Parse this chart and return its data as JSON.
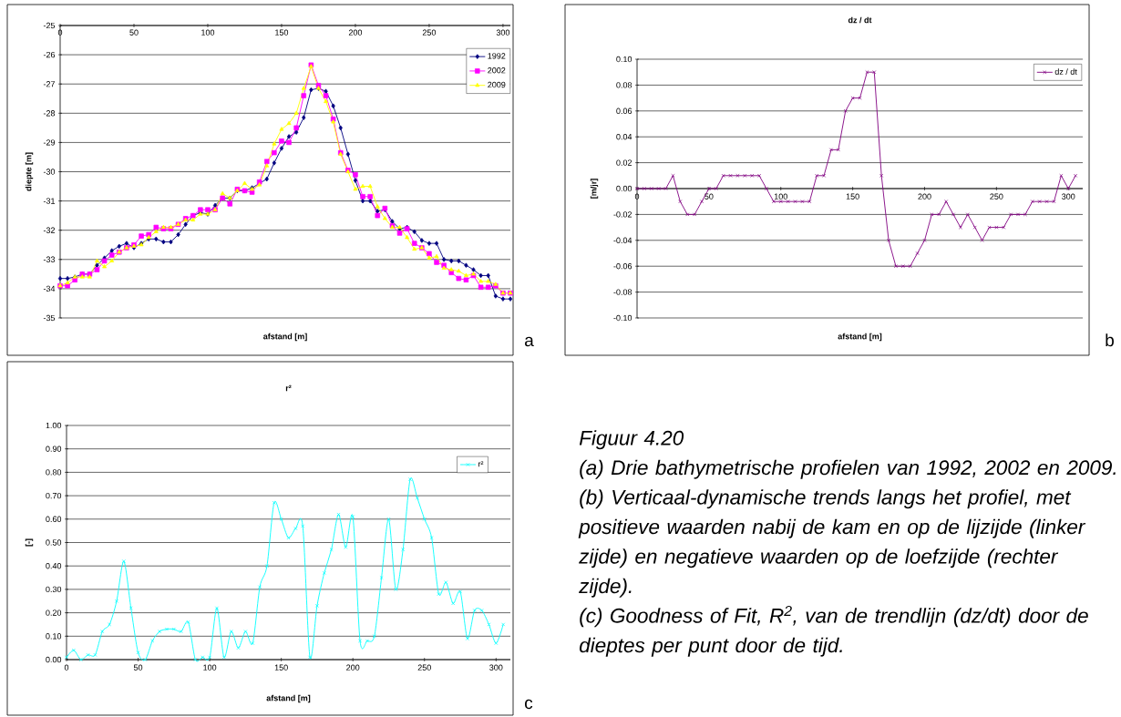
{
  "chart_data": [
    {
      "type": "line",
      "xlabel": "afstand [m]",
      "ylabel": "diepte [m]",
      "annotations": [
        "a"
      ],
      "x": [
        0,
        5,
        10,
        15,
        20,
        25,
        30,
        35,
        40,
        45,
        50,
        55,
        60,
        65,
        70,
        75,
        80,
        85,
        90,
        95,
        100,
        105,
        110,
        115,
        120,
        125,
        130,
        135,
        140,
        145,
        150,
        155,
        160,
        165,
        170,
        175,
        180,
        185,
        190,
        195,
        200,
        205,
        210,
        215,
        220,
        225,
        230,
        235,
        240,
        245,
        250,
        255,
        260,
        265,
        270,
        275,
        280,
        285,
        290,
        295,
        300,
        305
      ],
      "series": [
        {
          "name": "1992",
          "color": "#000080",
          "marker": "diamond",
          "values": [
            -33.65,
            -33.65,
            -33.6,
            -33.5,
            -33.5,
            -33.2,
            -32.95,
            -32.7,
            -32.55,
            -32.45,
            -32.6,
            -32.45,
            -32.3,
            -32.3,
            -32.4,
            -32.4,
            -32.15,
            -31.8,
            -31.5,
            -31.4,
            -31.45,
            -31.15,
            -30.9,
            -30.9,
            -30.65,
            -30.65,
            -30.55,
            -30.4,
            -30.25,
            -29.7,
            -29.2,
            -28.8,
            -28.65,
            -28.15,
            -27.2,
            -27.15,
            -27.25,
            -27.75,
            -28.5,
            -29.4,
            -30.3,
            -31.0,
            -31.0,
            -31.35,
            -31.3,
            -31.7,
            -31.95,
            -31.9,
            -32.05,
            -32.35,
            -32.45,
            -32.45,
            -33.0,
            -33.05,
            -33.05,
            -33.2,
            -33.35,
            -33.55,
            -33.55,
            -34.25,
            -34.35,
            -34.35
          ]
        },
        {
          "name": "2002",
          "color": "#ff00ff",
          "marker": "square",
          "values": [
            -33.9,
            -33.9,
            -33.7,
            -33.5,
            -33.5,
            -33.35,
            -33.05,
            -32.85,
            -32.75,
            -32.6,
            -32.5,
            -32.2,
            -32.15,
            -31.9,
            -31.95,
            -31.95,
            -31.8,
            -31.6,
            -31.5,
            -31.3,
            -31.3,
            -31.3,
            -30.9,
            -31.1,
            -30.6,
            -30.65,
            -30.7,
            -30.35,
            -29.65,
            -29.35,
            -28.95,
            -29.0,
            -28.5,
            -27.4,
            -26.35,
            -27.05,
            -27.4,
            -28.2,
            -29.35,
            -29.95,
            -30.1,
            -30.85,
            -30.85,
            -31.5,
            -31.25,
            -31.85,
            -32.1,
            -31.95,
            -32.45,
            -32.6,
            -32.8,
            -33.1,
            -33.2,
            -33.45,
            -33.65,
            -33.7,
            -33.55,
            -33.95,
            -33.95,
            -33.9,
            -34.15,
            -34.15
          ]
        },
        {
          "name": "2009",
          "color": "#ffff00",
          "marker": "triangle",
          "values": [
            -33.9,
            -33.8,
            -33.6,
            -33.6,
            -33.6,
            -33.05,
            -33.25,
            -33.05,
            -32.75,
            -32.6,
            -32.55,
            -32.5,
            -32.25,
            -32.05,
            -31.9,
            -31.9,
            -31.8,
            -31.65,
            -31.65,
            -31.45,
            -31.45,
            -31.3,
            -30.75,
            -30.9,
            -30.65,
            -30.4,
            -30.6,
            -30.45,
            -29.8,
            -29.05,
            -28.55,
            -28.35,
            -28.0,
            -27.15,
            -26.4,
            -27.15,
            -27.6,
            -28.3,
            -29.4,
            -30.0,
            -30.6,
            -30.5,
            -30.5,
            -31.2,
            -31.6,
            -31.9,
            -31.9,
            -32.25,
            -32.65,
            -32.6,
            -32.95,
            -32.9,
            -33.3,
            -33.35,
            -33.4,
            -33.55,
            -33.5,
            -33.75,
            -33.75,
            -33.85,
            -34.15,
            -34.15
          ]
        }
      ],
      "xlim": [
        0,
        305
      ],
      "ylim": [
        -35,
        -25
      ],
      "xticks": [
        0,
        50,
        100,
        150,
        200,
        250,
        300
      ],
      "yticks": [
        -25,
        -26,
        -27,
        -28,
        -29,
        -30,
        -31,
        -32,
        -33,
        -34,
        -35
      ],
      "grid": "y",
      "legend": "top right"
    },
    {
      "type": "line",
      "title": "dz / dt",
      "xlabel": "afstand [m]",
      "ylabel": "[m/jr]",
      "annotations": [
        "b"
      ],
      "x": [
        0,
        5,
        10,
        15,
        20,
        25,
        30,
        35,
        40,
        45,
        50,
        55,
        60,
        65,
        70,
        75,
        80,
        85,
        90,
        95,
        100,
        105,
        110,
        115,
        120,
        125,
        130,
        135,
        140,
        145,
        150,
        155,
        160,
        165,
        170,
        175,
        180,
        185,
        190,
        195,
        200,
        205,
        210,
        215,
        220,
        225,
        230,
        235,
        240,
        245,
        250,
        255,
        260,
        265,
        270,
        275,
        280,
        285,
        290,
        295,
        300,
        305
      ],
      "series": [
        {
          "name": "dz / dt",
          "color": "#800080",
          "marker": "cross",
          "values": [
            0,
            0,
            0,
            0,
            0,
            0.01,
            -0.01,
            -0.02,
            -0.02,
            -0.01,
            0,
            0,
            0.01,
            0.01,
            0.01,
            0.01,
            0.01,
            0.01,
            0,
            -0.01,
            -0.01,
            -0.01,
            -0.01,
            -0.01,
            -0.01,
            0.01,
            0.01,
            0.03,
            0.03,
            0.06,
            0.07,
            0.07,
            0.09,
            0.09,
            0.01,
            -0.04,
            -0.06,
            -0.06,
            -0.06,
            -0.05,
            -0.04,
            -0.02,
            -0.02,
            -0.01,
            -0.02,
            -0.03,
            -0.02,
            -0.03,
            -0.04,
            -0.03,
            -0.03,
            -0.03,
            -0.02,
            -0.02,
            -0.02,
            -0.01,
            -0.01,
            -0.01,
            -0.01,
            0.01,
            0,
            0.01
          ]
        }
      ],
      "xlim": [
        0,
        310
      ],
      "ylim": [
        -0.1,
        0.1
      ],
      "xticks": [
        0,
        50,
        100,
        150,
        200,
        250,
        300
      ],
      "yticks": [
        {
          "value": 0.1,
          "label": "0.10"
        },
        {
          "value": 0.08,
          "label": "0.08"
        },
        {
          "value": 0.06,
          "label": "0.06"
        },
        {
          "value": 0.04,
          "label": "0.04"
        },
        {
          "value": 0.02,
          "label": "0.02"
        },
        {
          "value": 0,
          "label": "0.00"
        },
        {
          "value": -0.02,
          "label": "-0.02"
        },
        {
          "value": -0.04,
          "label": "-0.04"
        },
        {
          "value": -0.06,
          "label": "-0.06"
        },
        {
          "value": -0.08,
          "label": "-0.08"
        },
        {
          "value": -0.1,
          "label": "-0.10"
        }
      ],
      "grid": "y",
      "legend": "top right"
    },
    {
      "type": "line",
      "title": "r²",
      "xlabel": "afstand [m]",
      "ylabel": "[-]",
      "annotations": [
        "c"
      ],
      "x": [
        0,
        5,
        10,
        15,
        20,
        25,
        30,
        35,
        40,
        45,
        50,
        55,
        60,
        65,
        70,
        75,
        80,
        85,
        90,
        95,
        100,
        105,
        110,
        115,
        120,
        125,
        130,
        135,
        140,
        145,
        150,
        155,
        160,
        165,
        170,
        175,
        180,
        185,
        190,
        195,
        200,
        205,
        210,
        215,
        220,
        225,
        230,
        235,
        240,
        245,
        250,
        255,
        260,
        265,
        270,
        275,
        280,
        285,
        290,
        295,
        300,
        305
      ],
      "series": [
        {
          "name": "r²",
          "color": "#00ffff",
          "marker": "cross",
          "values": [
            0.01,
            0.04,
            0,
            0.02,
            0.02,
            0.12,
            0.15,
            0.25,
            0.42,
            0.22,
            0.03,
            0,
            0.08,
            0.12,
            0.13,
            0.13,
            0.12,
            0.16,
            0,
            0.01,
            0.01,
            0.22,
            0.01,
            0.12,
            0.05,
            0.12,
            0.07,
            0.31,
            0.4,
            0.67,
            0.6,
            0.52,
            0.56,
            0.57,
            0.01,
            0.23,
            0.37,
            0.47,
            0.62,
            0.48,
            0.61,
            0.08,
            0.08,
            0.1,
            0.35,
            0.6,
            0.3,
            0.47,
            0.77,
            0.69,
            0.6,
            0.52,
            0.28,
            0.33,
            0.24,
            0.29,
            0.09,
            0.21,
            0.21,
            0.15,
            0.07,
            0.15
          ]
        }
      ],
      "xlim": [
        0,
        310
      ],
      "ylim": [
        0,
        1
      ],
      "xticks": [
        0,
        50,
        100,
        150,
        200,
        250,
        300
      ],
      "yticks": [
        {
          "value": 1,
          "label": "1.00"
        },
        {
          "value": 0.9,
          "label": "0.90"
        },
        {
          "value": 0.8,
          "label": "0.80"
        },
        {
          "value": 0.7,
          "label": "0.70"
        },
        {
          "value": 0.6,
          "label": "0.60"
        },
        {
          "value": 0.5,
          "label": "0.50"
        },
        {
          "value": 0.4,
          "label": "0.40"
        },
        {
          "value": 0.3,
          "label": "0.30"
        },
        {
          "value": 0.2,
          "label": "0.20"
        },
        {
          "value": 0.1,
          "label": "0.10"
        },
        {
          "value": 0,
          "label": "0.00"
        }
      ],
      "grid": "y",
      "legend": "top right"
    },
    {
      "type": "other",
      "title": "Figuur 4.20",
      "annotations": [
        "(a) Drie bathymetrische profielen van 1992, 2002 en 2009.",
        "(b) Verticaal-dynamische trends langs het profiel, met positieve waarden nabij de kam en op de lijzijde (linker zijde) en negatieve waarden op de loefzijde (rechter zijde).",
        "(c) Goodness of Fit, R$^{2}$, van de trendlijn (dz/dt) door de dieptes per punt door de tijd."
      ]
    }
  ]
}
